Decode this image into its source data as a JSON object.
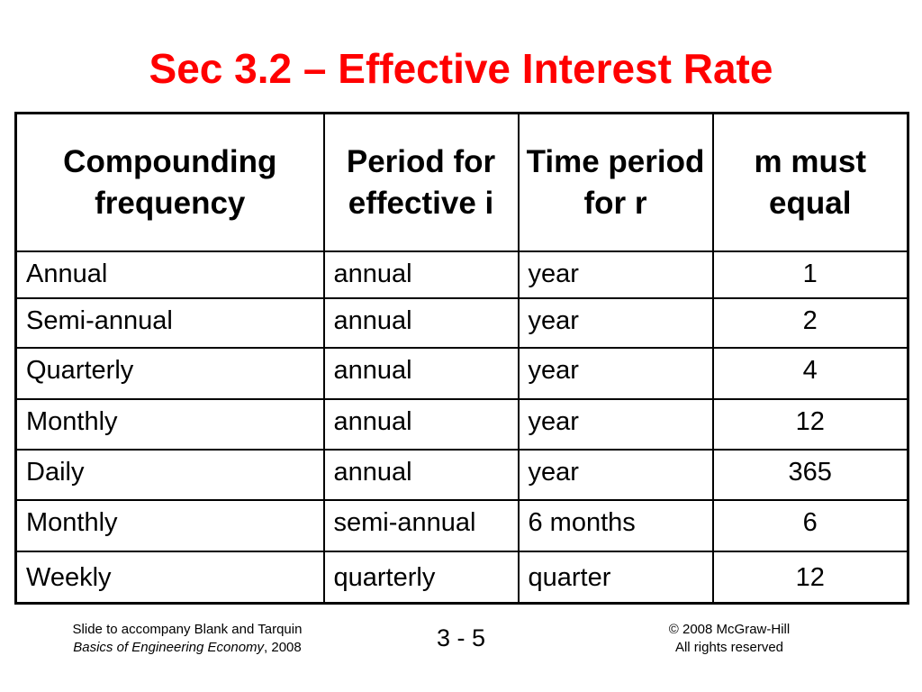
{
  "title": "Sec 3.2 – Effective Interest Rate",
  "table": {
    "headers": [
      "Compounding frequency",
      "Period for effective i",
      "Time period for r",
      "m must equal"
    ],
    "rows": [
      [
        "Annual",
        "annual",
        "year",
        "1"
      ],
      [
        "Semi-annual",
        "annual",
        "year",
        "2"
      ],
      [
        "Quarterly",
        "annual",
        "year",
        "4"
      ],
      [
        "Monthly",
        "annual",
        "year",
        "12"
      ],
      [
        "Daily",
        "annual",
        "year",
        "365"
      ],
      [
        "Monthly",
        "semi-annual",
        "6 months",
        "6"
      ],
      [
        "Weekly",
        "quarterly",
        "quarter",
        "12"
      ]
    ]
  },
  "footer": {
    "left_line1": "Slide to accompany Blank and Tarquin",
    "left_book": "Basics of Engineering Economy",
    "left_year": ", 2008",
    "page": "3 - 5",
    "right_line1": "© 2008 McGraw-Hill",
    "right_line2": "All rights reserved"
  },
  "colors": {
    "title": "#ff0000",
    "text": "#000000",
    "background": "#ffffff"
  }
}
